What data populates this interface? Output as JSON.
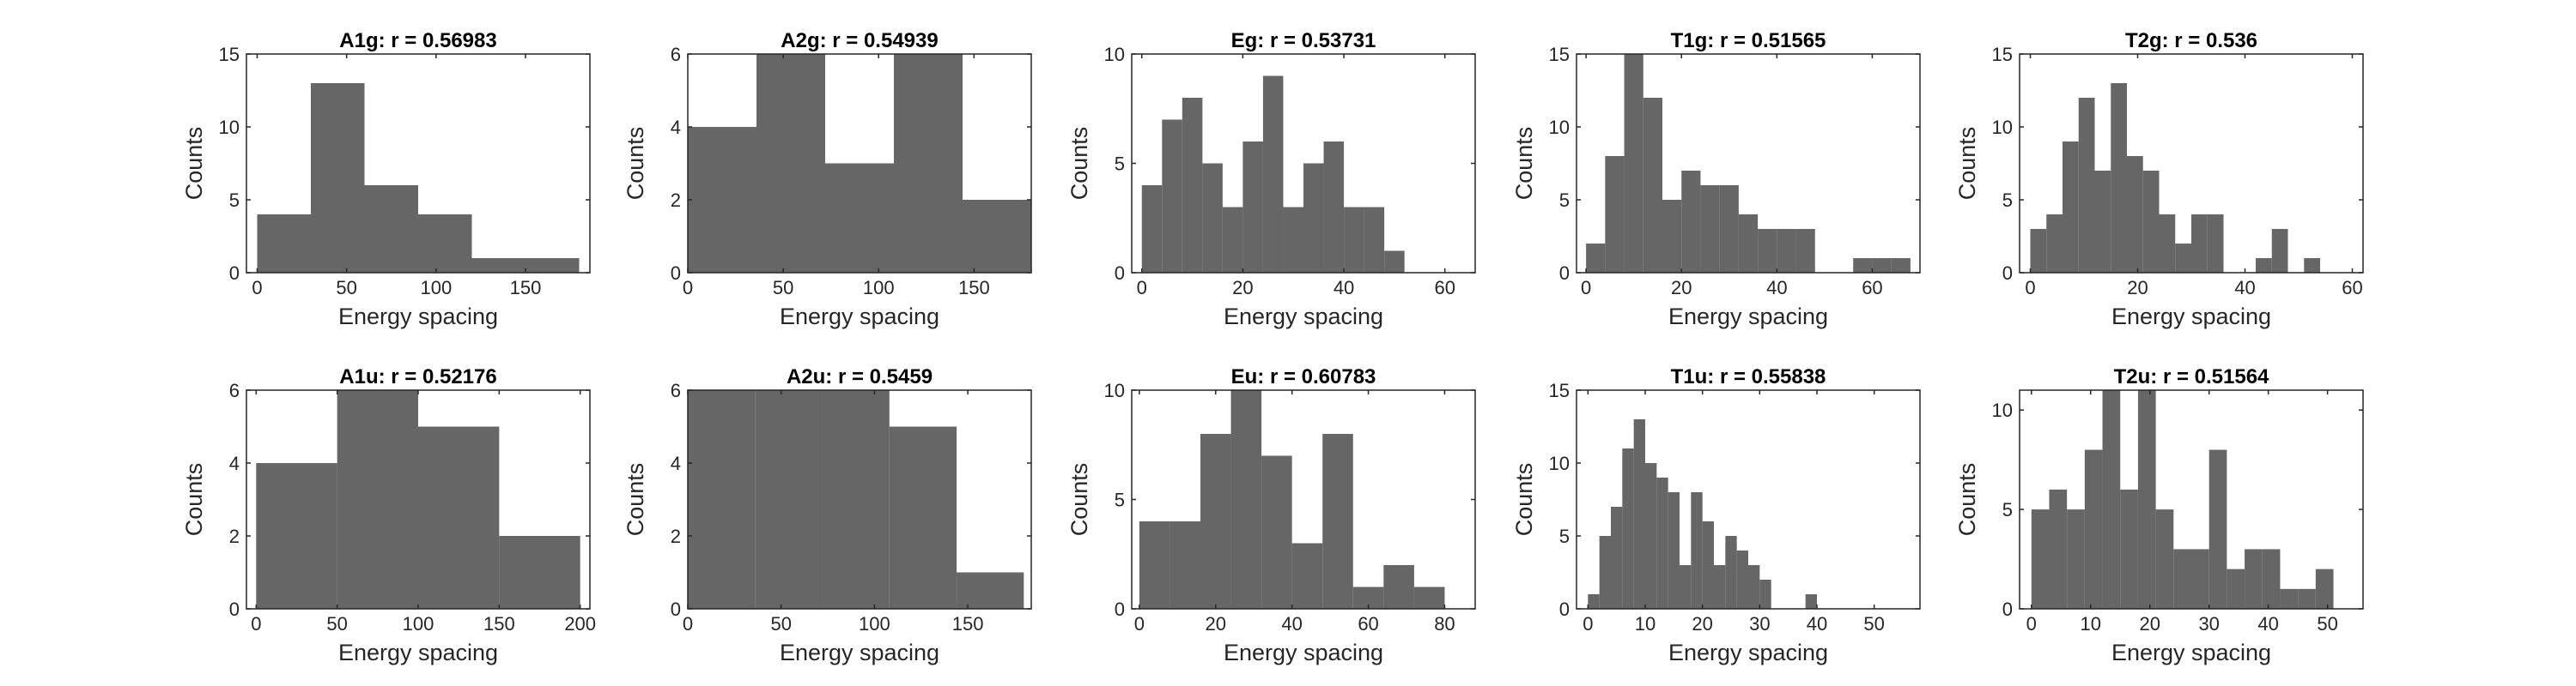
{
  "colors": {
    "bar": "#666666",
    "axis": "#262626",
    "background": "#ffffff"
  },
  "chart_data": [
    {
      "type": "bar",
      "title": "A1g: r = 0.56983",
      "xlabel": "Energy spacing",
      "ylabel": "Counts",
      "xlim": [
        -6,
        186
      ],
      "ylim": [
        0,
        15
      ],
      "xticks": [
        0,
        50,
        100,
        150
      ],
      "yticks": [
        0,
        5,
        10,
        15
      ],
      "bins": [
        [
          0,
          30,
          4
        ],
        [
          30,
          60,
          13
        ],
        [
          60,
          90,
          6
        ],
        [
          90,
          120,
          4
        ],
        [
          120,
          150,
          1
        ],
        [
          150,
          180,
          1
        ]
      ]
    },
    {
      "type": "bar",
      "title": "A2g: r = 0.54939",
      "xlabel": "Energy spacing",
      "ylabel": "Counts",
      "xlim": [
        0,
        180
      ],
      "ylim": [
        0,
        6
      ],
      "xticks": [
        0,
        50,
        100,
        150
      ],
      "yticks": [
        0,
        2,
        4,
        6
      ],
      "bins": [
        [
          0,
          36,
          4
        ],
        [
          36,
          72,
          6
        ],
        [
          72,
          108,
          3
        ],
        [
          108,
          144,
          6
        ],
        [
          144,
          180,
          2
        ]
      ]
    },
    {
      "type": "bar",
      "title": "Eg: r = 0.53731",
      "xlabel": "Energy spacing",
      "ylabel": "Counts",
      "xlim": [
        -2,
        66
      ],
      "ylim": [
        0,
        10
      ],
      "xticks": [
        0,
        20,
        40,
        60
      ],
      "yticks": [
        0,
        5,
        10
      ],
      "bins": [
        [
          0,
          4,
          4
        ],
        [
          4,
          8,
          7
        ],
        [
          8,
          12,
          8
        ],
        [
          12,
          16,
          5
        ],
        [
          16,
          20,
          3
        ],
        [
          20,
          24,
          6
        ],
        [
          24,
          28,
          9
        ],
        [
          28,
          32,
          3
        ],
        [
          32,
          36,
          5
        ],
        [
          36,
          40,
          6
        ],
        [
          40,
          44,
          3
        ],
        [
          44,
          48,
          3
        ],
        [
          48,
          52,
          1
        ]
      ]
    },
    {
      "type": "bar",
      "title": "T1g: r = 0.51565",
      "xlabel": "Energy spacing",
      "ylabel": "Counts",
      "xlim": [
        -2,
        70
      ],
      "ylim": [
        0,
        15
      ],
      "xticks": [
        0,
        20,
        40,
        60
      ],
      "yticks": [
        0,
        5,
        10,
        15
      ],
      "bins": [
        [
          0,
          4,
          2
        ],
        [
          4,
          8,
          8
        ],
        [
          8,
          12,
          15
        ],
        [
          12,
          16,
          12
        ],
        [
          16,
          20,
          5
        ],
        [
          20,
          24,
          7
        ],
        [
          24,
          28,
          6
        ],
        [
          28,
          32,
          6
        ],
        [
          32,
          36,
          4
        ],
        [
          36,
          40,
          3
        ],
        [
          40,
          44,
          3
        ],
        [
          44,
          48,
          3
        ],
        [
          48,
          52,
          0
        ],
        [
          52,
          56,
          0
        ],
        [
          56,
          60,
          1
        ],
        [
          60,
          64,
          1
        ],
        [
          64,
          68,
          1
        ]
      ]
    },
    {
      "type": "bar",
      "title": "T2g: r = 0.536",
      "xlabel": "Energy spacing",
      "ylabel": "Counts",
      "xlim": [
        -2,
        62
      ],
      "ylim": [
        0,
        15
      ],
      "xticks": [
        0,
        20,
        40,
        60
      ],
      "yticks": [
        0,
        5,
        10,
        15
      ],
      "bins": [
        [
          0,
          3,
          3
        ],
        [
          3,
          6,
          4
        ],
        [
          6,
          9,
          9
        ],
        [
          9,
          12,
          12
        ],
        [
          12,
          15,
          7
        ],
        [
          15,
          18,
          13
        ],
        [
          18,
          21,
          8
        ],
        [
          21,
          24,
          7
        ],
        [
          24,
          27,
          4
        ],
        [
          27,
          30,
          2
        ],
        [
          30,
          33,
          4
        ],
        [
          33,
          36,
          4
        ],
        [
          36,
          39,
          0
        ],
        [
          39,
          42,
          0
        ],
        [
          42,
          45,
          1
        ],
        [
          45,
          48,
          3
        ],
        [
          48,
          51,
          0
        ],
        [
          51,
          54,
          1
        ]
      ]
    },
    {
      "type": "bar",
      "title": "A1u: r = 0.52176",
      "xlabel": "Energy spacing",
      "ylabel": "Counts",
      "xlim": [
        -6,
        206
      ],
      "ylim": [
        0,
        6
      ],
      "xticks": [
        0,
        50,
        100,
        150,
        200
      ],
      "yticks": [
        0,
        2,
        4,
        6
      ],
      "bins": [
        [
          0,
          50,
          4
        ],
        [
          50,
          100,
          6
        ],
        [
          100,
          150,
          5
        ],
        [
          150,
          200,
          2
        ]
      ]
    },
    {
      "type": "bar",
      "title": "A2u: r = 0.5459",
      "xlabel": "Energy spacing",
      "ylabel": "Counts",
      "xlim": [
        0,
        184
      ],
      "ylim": [
        0,
        6
      ],
      "xticks": [
        0,
        50,
        100,
        150
      ],
      "yticks": [
        0,
        2,
        4,
        6
      ],
      "bins": [
        [
          0,
          36,
          6
        ],
        [
          36,
          72,
          6
        ],
        [
          72,
          108,
          6
        ],
        [
          108,
          144,
          5
        ],
        [
          144,
          180,
          1
        ]
      ]
    },
    {
      "type": "bar",
      "title": "Eu: r = 0.60783",
      "xlabel": "Energy spacing",
      "ylabel": "Counts",
      "xlim": [
        -2,
        88
      ],
      "ylim": [
        0,
        10
      ],
      "xticks": [
        0,
        20,
        40,
        60,
        80
      ],
      "yticks": [
        0,
        5,
        10
      ],
      "bins": [
        [
          0,
          8,
          4
        ],
        [
          8,
          16,
          4
        ],
        [
          16,
          24,
          8
        ],
        [
          24,
          32,
          10
        ],
        [
          32,
          40,
          7
        ],
        [
          40,
          48,
          3
        ],
        [
          48,
          56,
          8
        ],
        [
          56,
          64,
          1
        ],
        [
          64,
          72,
          2
        ],
        [
          72,
          80,
          1
        ]
      ]
    },
    {
      "type": "bar",
      "title": "T1u: r = 0.55838",
      "xlabel": "Energy spacing",
      "ylabel": "Counts",
      "xlim": [
        -2,
        58
      ],
      "ylim": [
        0,
        15
      ],
      "xticks": [
        0,
        10,
        20,
        30,
        40,
        50
      ],
      "yticks": [
        0,
        5,
        10,
        15
      ],
      "bins": [
        [
          0,
          2,
          1
        ],
        [
          2,
          4,
          5
        ],
        [
          4,
          6,
          7
        ],
        [
          6,
          8,
          11
        ],
        [
          8,
          10,
          13
        ],
        [
          10,
          12,
          10
        ],
        [
          12,
          14,
          9
        ],
        [
          14,
          16,
          8
        ],
        [
          16,
          18,
          3
        ],
        [
          18,
          20,
          8
        ],
        [
          20,
          22,
          6
        ],
        [
          22,
          24,
          3
        ],
        [
          24,
          26,
          5
        ],
        [
          26,
          28,
          4
        ],
        [
          28,
          30,
          3
        ],
        [
          30,
          32,
          2
        ],
        [
          32,
          34,
          0
        ],
        [
          34,
          36,
          0
        ],
        [
          36,
          38,
          0
        ],
        [
          38,
          40,
          1
        ]
      ]
    },
    {
      "type": "bar",
      "title": "T2u: r = 0.51564",
      "xlabel": "Energy spacing",
      "ylabel": "Counts",
      "xlim": [
        -2,
        56
      ],
      "ylim": [
        0,
        11
      ],
      "xticks": [
        0,
        10,
        20,
        30,
        40,
        50
      ],
      "yticks": [
        0,
        5,
        10
      ],
      "bins": [
        [
          0,
          3,
          5
        ],
        [
          3,
          6,
          6
        ],
        [
          6,
          9,
          5
        ],
        [
          9,
          12,
          8
        ],
        [
          12,
          15,
          11
        ],
        [
          15,
          18,
          6
        ],
        [
          18,
          21,
          11
        ],
        [
          21,
          24,
          5
        ],
        [
          24,
          27,
          3
        ],
        [
          27,
          30,
          3
        ],
        [
          30,
          33,
          8
        ],
        [
          33,
          36,
          2
        ],
        [
          36,
          39,
          3
        ],
        [
          39,
          42,
          3
        ],
        [
          42,
          45,
          1
        ],
        [
          45,
          48,
          1
        ],
        [
          48,
          51,
          2
        ]
      ]
    }
  ]
}
